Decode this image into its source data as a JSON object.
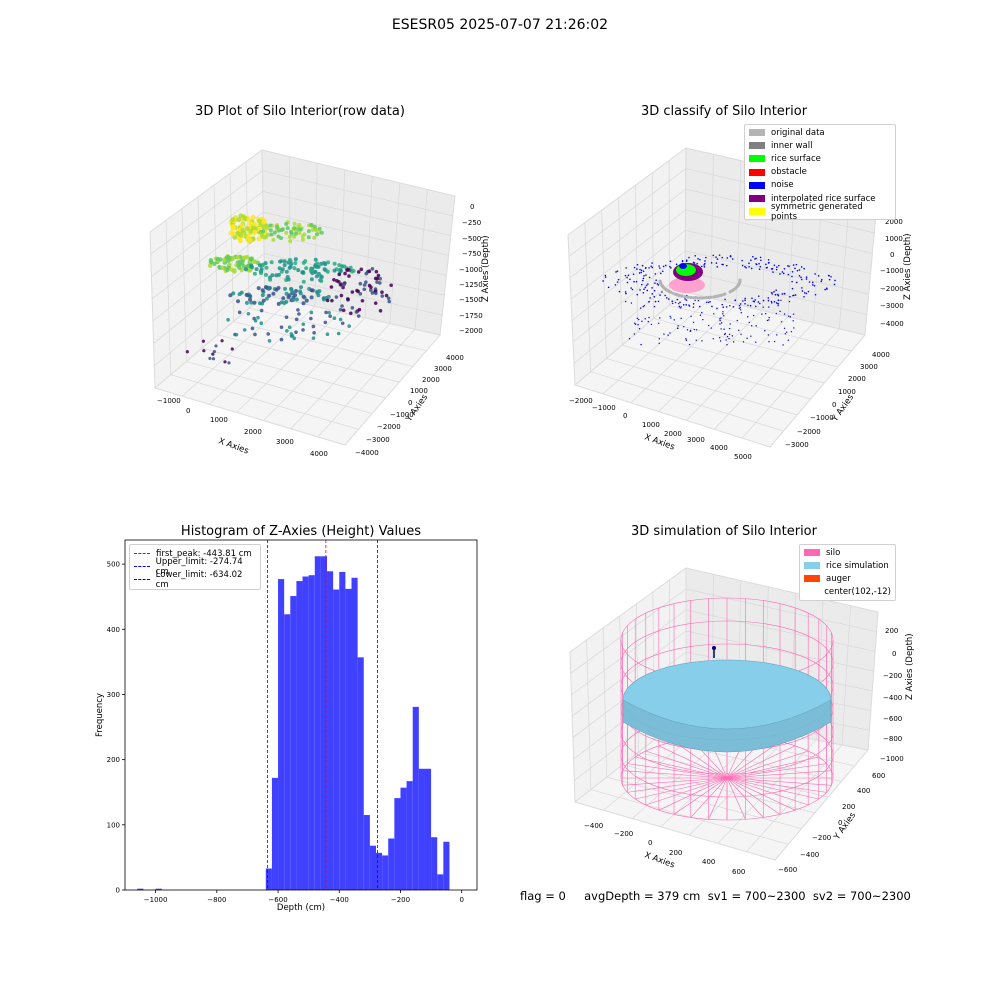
{
  "figure": {
    "suptitle": "ESESR05 2025-07-07 21:26:02",
    "status_text": "flag = 0     avgDepth = 379 cm  sv1 = 700~2300  sv2 = 700~2300"
  },
  "colors": {
    "histogram_bar": "#4040ff",
    "peak_line": "#ff0000",
    "limit_line": "#0000ff",
    "silo": "#ff69b4",
    "rice_simulation": "#87ceeb",
    "auger": "#ff4500"
  },
  "chart_data": [
    {
      "type": "scatter",
      "projection": "3d",
      "title": "3D Plot of Silo Interior(row data)",
      "xlabel": "X Axies",
      "ylabel": "Y Axies",
      "zlabel": "Z Axies (Depth)",
      "xticks": [
        "−1000",
        "0",
        "1000",
        "2000",
        "3000",
        "4000"
      ],
      "yticks": [
        "−4000",
        "−3000",
        "−2000",
        "−1000",
        "0",
        "1000",
        "2000",
        "3000",
        "4000"
      ],
      "zticks": [
        "0",
        "−250",
        "−500",
        "−750",
        "−1000",
        "−1250",
        "−1500",
        "−1750",
        "−2000"
      ],
      "colormap": "viridis"
    },
    {
      "type": "scatter",
      "projection": "3d",
      "title": "3D classify of Silo Interior",
      "xlabel": "X Axies",
      "ylabel": "Y Axies",
      "zlabel": "Z Axies (Depth)",
      "xticks": [
        "−2000",
        "−1000",
        "0",
        "1000",
        "2000",
        "3000",
        "4000",
        "5000"
      ],
      "yticks": [
        "−3000",
        "−2000",
        "−1000",
        "0",
        "1000",
        "2000",
        "3000",
        "4000"
      ],
      "zticks": [
        "2000",
        "1000",
        "0",
        "−1000",
        "−2000",
        "−3000",
        "−4000"
      ],
      "legend": [
        {
          "label": "original data",
          "color": "#b4b4b4"
        },
        {
          "label": "inner wall",
          "color": "#808080"
        },
        {
          "label": "rice surface",
          "color": "#00ff00"
        },
        {
          "label": "obstacle",
          "color": "#ff0000"
        },
        {
          "label": "noise",
          "color": "#0000ff"
        },
        {
          "label": "interpolated rice surface",
          "color": "#800080"
        },
        {
          "label": "symmetric generated points",
          "color": "#ffff00"
        }
      ]
    },
    {
      "type": "bar",
      "title": "Histogram of Z-Axies (Height) Values",
      "xlabel": "Depth (cm)",
      "ylabel": "Frequency",
      "xlim": [
        -1100,
        50
      ],
      "ylim": [
        0,
        537
      ],
      "xticks": [
        -1000,
        -800,
        -600,
        -400,
        -200,
        0
      ],
      "xtick_labels": [
        "−1000",
        "−800",
        "−600",
        "−400",
        "−200",
        "0"
      ],
      "yticks": [
        0,
        100,
        200,
        300,
        400,
        500
      ],
      "bin_width": 20,
      "bins": [
        {
          "x": -1060,
          "value": 2
        },
        {
          "x": -1000,
          "value": 2
        },
        {
          "x": -640,
          "value": 33
        },
        {
          "x": -620,
          "value": 172
        },
        {
          "x": -600,
          "value": 477
        },
        {
          "x": -580,
          "value": 423
        },
        {
          "x": -560,
          "value": 451
        },
        {
          "x": -540,
          "value": 474
        },
        {
          "x": -520,
          "value": 481
        },
        {
          "x": -500,
          "value": 483
        },
        {
          "x": -480,
          "value": 512
        },
        {
          "x": -460,
          "value": 512
        },
        {
          "x": -440,
          "value": 489
        },
        {
          "x": -420,
          "value": 461
        },
        {
          "x": -400,
          "value": 488
        },
        {
          "x": -380,
          "value": 462
        },
        {
          "x": -360,
          "value": 479
        },
        {
          "x": -340,
          "value": 357
        },
        {
          "x": -320,
          "value": 115
        },
        {
          "x": -300,
          "value": 68
        },
        {
          "x": -280,
          "value": 57
        },
        {
          "x": -260,
          "value": 53
        },
        {
          "x": -240,
          "value": 79
        },
        {
          "x": -220,
          "value": 141
        },
        {
          "x": -200,
          "value": 157
        },
        {
          "x": -180,
          "value": 167
        },
        {
          "x": -160,
          "value": 281
        },
        {
          "x": -140,
          "value": 186
        },
        {
          "x": -120,
          "value": 186
        },
        {
          "x": -100,
          "value": 81
        },
        {
          "x": -80,
          "value": 24
        },
        {
          "x": -60,
          "value": 74
        }
      ],
      "lines": [
        {
          "label": "first_peak: -443.81 cm",
          "x": -443.81,
          "color": "#ff0000"
        },
        {
          "label": "Upper_limit: -274.74 cm",
          "x": -274.74,
          "color": "#0000ff"
        },
        {
          "label": "Lower_limit: -634.02 cm",
          "x": -634.02,
          "color": "#0000ff"
        }
      ]
    },
    {
      "type": "surface",
      "projection": "3d",
      "title": "3D simulation of Silo Interior",
      "xlabel": "X Axies",
      "ylabel": "Y Axies",
      "zlabel": "Z Axies (Depth)",
      "xticks": [
        "−400",
        "−200",
        "0",
        "200",
        "400",
        "600"
      ],
      "yticks": [
        "−600",
        "−400",
        "−200",
        "0",
        "200",
        "400",
        "600"
      ],
      "zticks": [
        "200",
        "0",
        "−200",
        "−400",
        "−600",
        "−800",
        "−1000"
      ],
      "legend": [
        {
          "label": "silo",
          "color": "#ff69b4"
        },
        {
          "label": "rice simulation",
          "color": "#87ceeb"
        },
        {
          "label": "auger",
          "color": "#ff4500"
        },
        {
          "label": "center(102,-12)",
          "color": ""
        }
      ]
    }
  ]
}
